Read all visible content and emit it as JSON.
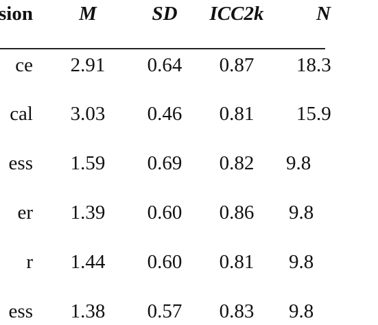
{
  "table": {
    "headers": [
      "sion",
      "M",
      "SD",
      "ICC2k",
      "N"
    ],
    "rows": [
      [
        "ce",
        "2.91",
        "0.64",
        "0.87",
        "18.3"
      ],
      [
        "cal",
        "3.03",
        "0.46",
        "0.81",
        "15.9"
      ],
      [
        "ess",
        "1.59",
        "0.69",
        "0.82",
        "9.8"
      ],
      [
        "er",
        "1.39",
        "0.60",
        "0.86",
        "9.8"
      ],
      [
        "r",
        "1.44",
        "0.60",
        "0.81",
        "9.8"
      ],
      [
        "ess",
        "1.38",
        "0.57",
        "0.83",
        "9.8"
      ]
    ]
  }
}
